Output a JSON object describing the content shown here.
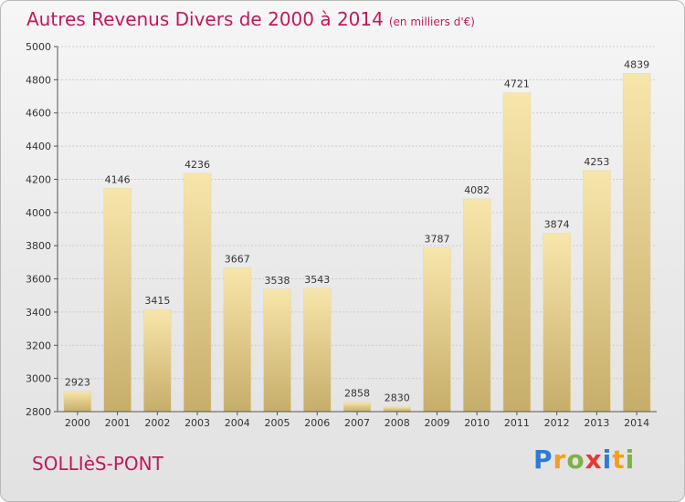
{
  "title": "Autres Revenus Divers de 2000 à 2014",
  "unit_note": "(en milliers d'€)",
  "commune": "SOLLIèS-PONT",
  "brand": {
    "letters": [
      "P",
      "r",
      "o",
      "x",
      "i",
      "t",
      "i"
    ],
    "colors": [
      "#2e7bd6",
      "#f0a020",
      "#7cb342",
      "#e53935",
      "#2e7bd6",
      "#f0a020",
      "#7cb342"
    ]
  },
  "colors": {
    "title": "#c2185b",
    "bar_light": "#f6e3a4",
    "bar_dark": "#c9b06e",
    "grid": "#cccccc",
    "axis": "#555555"
  },
  "chart_data": {
    "type": "bar",
    "categories": [
      "2000",
      "2001",
      "2002",
      "2003",
      "2004",
      "2005",
      "2006",
      "2007",
      "2008",
      "2009",
      "2010",
      "2011",
      "2012",
      "2013",
      "2014"
    ],
    "values": [
      2923,
      4146,
      3415,
      4236,
      3667,
      3538,
      3543,
      2858,
      2830,
      3787,
      4082,
      4721,
      3874,
      4253,
      4839
    ],
    "ylim": [
      2800,
      5000
    ],
    "yticks": [
      2800,
      3000,
      3200,
      3400,
      3600,
      3800,
      4000,
      4200,
      4400,
      4600,
      4800,
      5000
    ],
    "grid": true,
    "data_labels": true
  }
}
